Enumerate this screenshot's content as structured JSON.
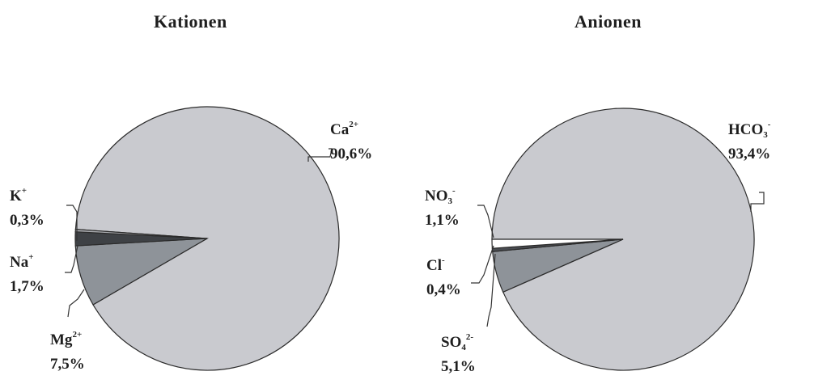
{
  "chart_data": [
    {
      "type": "pie",
      "title": "Kationen",
      "slices": [
        {
          "id": "ca",
          "label": {
            "base": "Ca",
            "sub": "",
            "sup": "2+"
          },
          "pct_label": "90,6%",
          "value": 90.6,
          "color": "#c9cacf"
        },
        {
          "id": "mg",
          "label": {
            "base": "Mg",
            "sub": "",
            "sup": "2+"
          },
          "pct_label": "7,5%",
          "value": 7.5,
          "color": "#8e9399"
        },
        {
          "id": "na",
          "label": {
            "base": "Na",
            "sub": "",
            "sup": "+"
          },
          "pct_label": "1,7%",
          "value": 1.7,
          "color": "#3e4145"
        },
        {
          "id": "k",
          "label": {
            "base": "K",
            "sub": "",
            "sup": "+"
          },
          "pct_label": "0,3%",
          "value": 0.3,
          "color": "#a9abaf"
        }
      ]
    },
    {
      "type": "pie",
      "title": "Anionen",
      "slices": [
        {
          "id": "hco3",
          "label": {
            "base": "HCO",
            "sub": "3",
            "sup": "-"
          },
          "pct_label": "93,4%",
          "value": 93.4,
          "color": "#c9cacf"
        },
        {
          "id": "so4",
          "label": {
            "base": "SO",
            "sub": "4",
            "sup": "2-"
          },
          "pct_label": "5,1%",
          "value": 5.1,
          "color": "#8e9399"
        },
        {
          "id": "cl",
          "label": {
            "base": "Cl",
            "sub": "",
            "sup": "-"
          },
          "pct_label": "0,4%",
          "value": 0.4,
          "color": "#4a4d52"
        },
        {
          "id": "no3",
          "label": {
            "base": "NO",
            "sub": "3",
            "sup": "-"
          },
          "pct_label": "1,1%",
          "value": 1.1,
          "color": "#ffffff"
        }
      ]
    }
  ]
}
